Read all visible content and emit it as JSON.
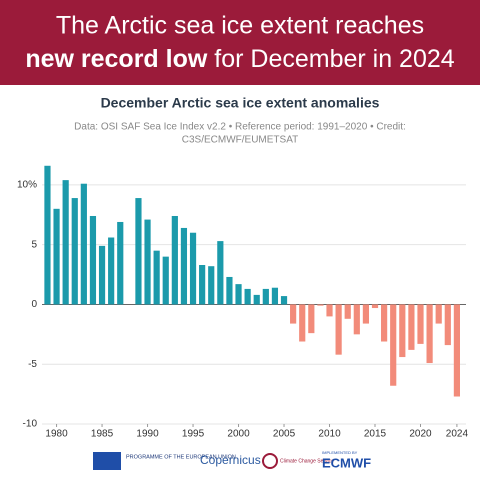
{
  "header": {
    "line1": "The Arctic sea ice extent reaches",
    "line2_bold": "new record low",
    "line2_rest": "for December in 2024"
  },
  "chart_data": {
    "type": "bar",
    "title": "December Arctic sea ice extent anomalies",
    "subtitle_lines": [
      "Data: OSI SAF Sea Ice Index v2.2 • Reference period: 1991–2020 • Credit:",
      "C3S/ECMWF/EUMETSAT"
    ],
    "x": [
      1979,
      1980,
      1981,
      1982,
      1983,
      1984,
      1985,
      1986,
      1987,
      1988,
      1989,
      1990,
      1991,
      1992,
      1993,
      1994,
      1995,
      1996,
      1997,
      1998,
      1999,
      2000,
      2001,
      2002,
      2003,
      2004,
      2005,
      2006,
      2007,
      2008,
      2009,
      2010,
      2011,
      2012,
      2013,
      2014,
      2015,
      2016,
      2017,
      2018,
      2019,
      2020,
      2021,
      2022,
      2023,
      2024
    ],
    "values": [
      11.6,
      8.0,
      10.4,
      8.9,
      10.1,
      7.4,
      4.9,
      5.6,
      6.9,
      null,
      8.9,
      7.1,
      4.5,
      4.0,
      7.4,
      6.4,
      6.0,
      3.3,
      3.2,
      5.3,
      2.3,
      1.7,
      1.3,
      0.8,
      1.3,
      1.4,
      0.7,
      -1.6,
      -3.1,
      -2.4,
      -0.1,
      -1.0,
      -4.2,
      -1.2,
      -2.5,
      -1.6,
      -0.3,
      -3.1,
      -6.8,
      -4.4,
      -3.8,
      -3.3,
      -4.9,
      -1.6,
      -3.4,
      -7.7
    ],
    "positive_color": "#1b9aab",
    "negative_color": "#f28b7a",
    "xlim": [
      1978.4,
      2025.0
    ],
    "xticks": [
      1980,
      1985,
      1990,
      1995,
      2000,
      2005,
      2010,
      2015,
      2020,
      2024
    ],
    "ylim": [
      -10,
      12
    ],
    "yticks": [
      {
        "value": 10,
        "label": "10%"
      },
      5,
      0,
      -5,
      -10
    ],
    "grid": true
  },
  "footer": {
    "eu": "PROGRAMME OF THE EUROPEAN UNION",
    "copernicus": "Copernicus",
    "c3s": "Climate Change Service",
    "implemented": "IMPLEMENTED BY",
    "ecmwf": "ECMWF"
  }
}
